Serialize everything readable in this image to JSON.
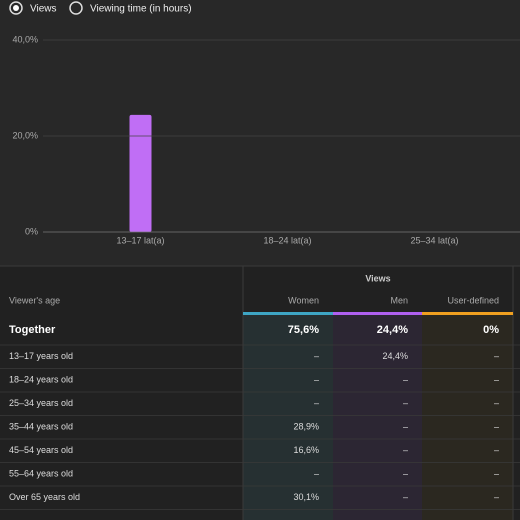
{
  "radio": {
    "options": [
      "Views",
      "Viewing time (in hours)"
    ],
    "selected": 0
  },
  "chart_data": {
    "type": "bar",
    "categories": [
      "13–17 lat(a)",
      "18–24 lat(a)",
      "25–34 lat(a)"
    ],
    "values": [
      24.4,
      0,
      0
    ],
    "color": "#c06ef5",
    "ylim": [
      0,
      40
    ],
    "yticks": [
      {
        "value": 0,
        "label": "0%"
      },
      {
        "value": 20,
        "label": "20,0%"
      },
      {
        "value": 40,
        "label": "40,0%"
      }
    ],
    "grid": true
  },
  "table": {
    "group_header": "Views",
    "columns": [
      "Viewer's age",
      "Women",
      "Men",
      "User-defined"
    ],
    "column_colors": [
      "#3ea6c5",
      "#b060f0",
      "#f0a020"
    ],
    "rows": [
      [
        "Together",
        "75,6%",
        "24,4%",
        "0%"
      ],
      [
        "13–17 years old",
        "–",
        "24,4%",
        "–"
      ],
      [
        "18–24 years old",
        "–",
        "–",
        "–"
      ],
      [
        "25–34 years old",
        "–",
        "–",
        "–"
      ],
      [
        "35–44 years old",
        "28,9%",
        "–",
        "–"
      ],
      [
        "45–54 years old",
        "16,6%",
        "–",
        "–"
      ],
      [
        "55–64 years old",
        "–",
        "–",
        "–"
      ],
      [
        "Over 65 years old",
        "30,1%",
        "–",
        "–"
      ]
    ]
  }
}
